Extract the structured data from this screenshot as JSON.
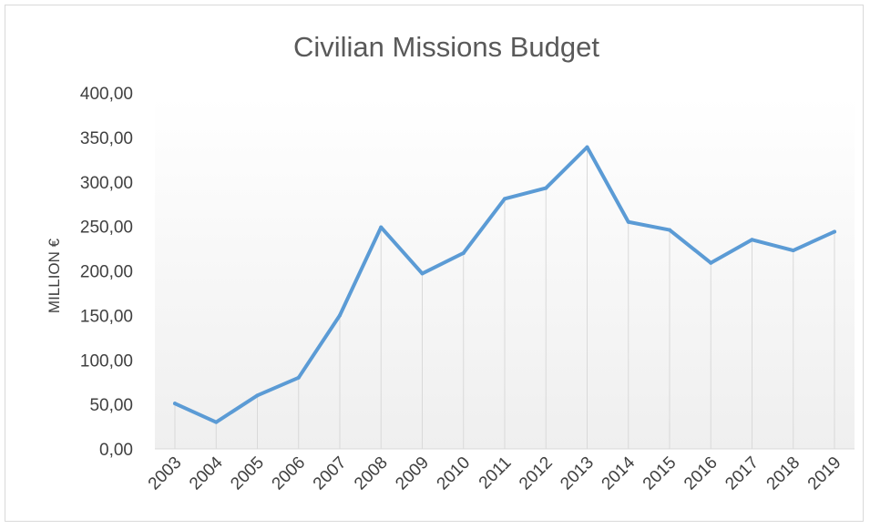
{
  "chart_data": {
    "type": "line",
    "title": "Civilian Missions Budget",
    "xlabel": "",
    "ylabel": "MILLION €",
    "categories": [
      "2003",
      "2004",
      "2005",
      "2006",
      "2007",
      "2008",
      "2009",
      "2010",
      "2011",
      "2012",
      "2013",
      "2014",
      "2015",
      "2016",
      "2017",
      "2018",
      "2019"
    ],
    "series": [
      {
        "values": [
          51,
          30,
          60,
          80,
          150,
          249,
          197,
          220,
          281,
          293,
          339,
          255,
          246,
          209,
          235,
          223,
          244
        ]
      }
    ],
    "ylim": [
      0,
      400
    ],
    "yticks": [
      0,
      50,
      100,
      150,
      200,
      250,
      300,
      350,
      400
    ],
    "ytick_labels": [
      "0,00",
      "50,00",
      "100,00",
      "150,00",
      "200,00",
      "250,00",
      "300,00",
      "350,00",
      "400,00"
    ],
    "grid": "vertical drop lines",
    "legend": "none",
    "colors": {
      "line": "#5b9bd5",
      "drop_lines": "#d9d9d9",
      "axis": "#d9d9d9"
    }
  }
}
